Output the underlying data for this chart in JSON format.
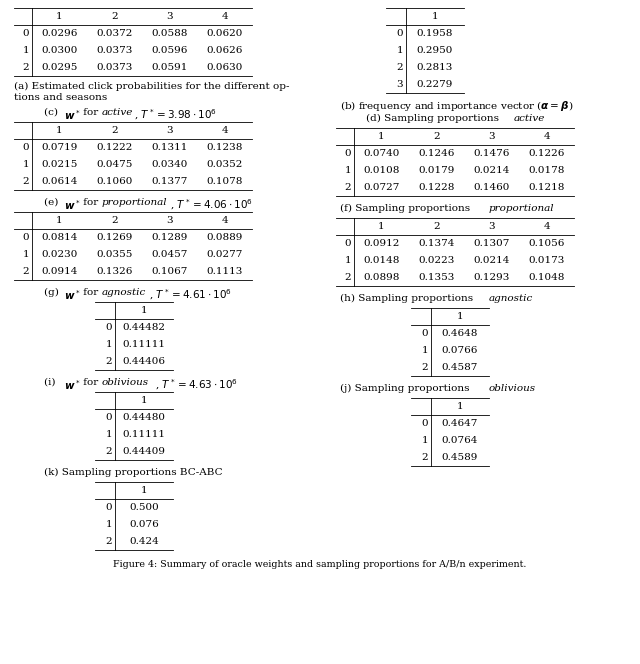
{
  "fig_width": 6.4,
  "fig_height": 6.64,
  "background_color": "#ffffff",
  "table_a_col_labels": [
    "1",
    "2",
    "3",
    "4"
  ],
  "table_a_row_labels": [
    "0",
    "1",
    "2"
  ],
  "table_a_data": [
    [
      "0.0296",
      "0.0372",
      "0.0588",
      "0.0620"
    ],
    [
      "0.0300",
      "0.0373",
      "0.0596",
      "0.0626"
    ],
    [
      "0.0295",
      "0.0373",
      "0.0591",
      "0.0630"
    ]
  ],
  "table_b_col_labels": [
    "1"
  ],
  "table_b_row_labels": [
    "0",
    "1",
    "2",
    "3"
  ],
  "table_b_data": [
    [
      "0.1958"
    ],
    [
      "0.2950"
    ],
    [
      "0.2813"
    ],
    [
      "0.2279"
    ]
  ],
  "table_c_col_labels": [
    "1",
    "2",
    "3",
    "4"
  ],
  "table_c_row_labels": [
    "0",
    "1",
    "2"
  ],
  "table_c_data": [
    [
      "0.0719",
      "0.1222",
      "0.1311",
      "0.1238"
    ],
    [
      "0.0215",
      "0.0475",
      "0.0340",
      "0.0352"
    ],
    [
      "0.0614",
      "0.1060",
      "0.1377",
      "0.1078"
    ]
  ],
  "table_d_col_labels": [
    "1",
    "2",
    "3",
    "4"
  ],
  "table_d_row_labels": [
    "0",
    "1",
    "2"
  ],
  "table_d_data": [
    [
      "0.0740",
      "0.1246",
      "0.1476",
      "0.1226"
    ],
    [
      "0.0108",
      "0.0179",
      "0.0214",
      "0.0178"
    ],
    [
      "0.0727",
      "0.1228",
      "0.1460",
      "0.1218"
    ]
  ],
  "table_e_col_labels": [
    "1",
    "2",
    "3",
    "4"
  ],
  "table_e_row_labels": [
    "0",
    "1",
    "2"
  ],
  "table_e_data": [
    [
      "0.0814",
      "0.1269",
      "0.1289",
      "0.0889"
    ],
    [
      "0.0230",
      "0.0355",
      "0.0457",
      "0.0277"
    ],
    [
      "0.0914",
      "0.1326",
      "0.1067",
      "0.1113"
    ]
  ],
  "table_f_col_labels": [
    "1",
    "2",
    "3",
    "4"
  ],
  "table_f_row_labels": [
    "0",
    "1",
    "2"
  ],
  "table_f_data": [
    [
      "0.0912",
      "0.1374",
      "0.1307",
      "0.1056"
    ],
    [
      "0.0148",
      "0.0223",
      "0.0214",
      "0.0173"
    ],
    [
      "0.0898",
      "0.1353",
      "0.1293",
      "0.1048"
    ]
  ],
  "table_g_col_labels": [
    "1"
  ],
  "table_g_row_labels": [
    "0",
    "1",
    "2"
  ],
  "table_g_data": [
    [
      "0.44482"
    ],
    [
      "0.11111"
    ],
    [
      "0.44406"
    ]
  ],
  "table_h_col_labels": [
    "1"
  ],
  "table_h_row_labels": [
    "0",
    "1",
    "2"
  ],
  "table_h_data": [
    [
      "0.4648"
    ],
    [
      "0.0766"
    ],
    [
      "0.4587"
    ]
  ],
  "table_i_col_labels": [
    "1"
  ],
  "table_i_row_labels": [
    "0",
    "1",
    "2"
  ],
  "table_i_data": [
    [
      "0.44480"
    ],
    [
      "0.11111"
    ],
    [
      "0.44409"
    ]
  ],
  "table_j_col_labels": [
    "1"
  ],
  "table_j_row_labels": [
    "0",
    "1",
    "2"
  ],
  "table_j_data": [
    [
      "0.4647"
    ],
    [
      "0.0764"
    ],
    [
      "0.4589"
    ]
  ],
  "table_k_col_labels": [
    "1"
  ],
  "table_k_row_labels": [
    "0",
    "1",
    "2"
  ],
  "table_k_data": [
    [
      "0.500"
    ],
    [
      "0.076"
    ],
    [
      "0.424"
    ]
  ],
  "figure_caption": "Figure 4: Summary of oracle weights and sampling proportions for A/B/n experiment."
}
